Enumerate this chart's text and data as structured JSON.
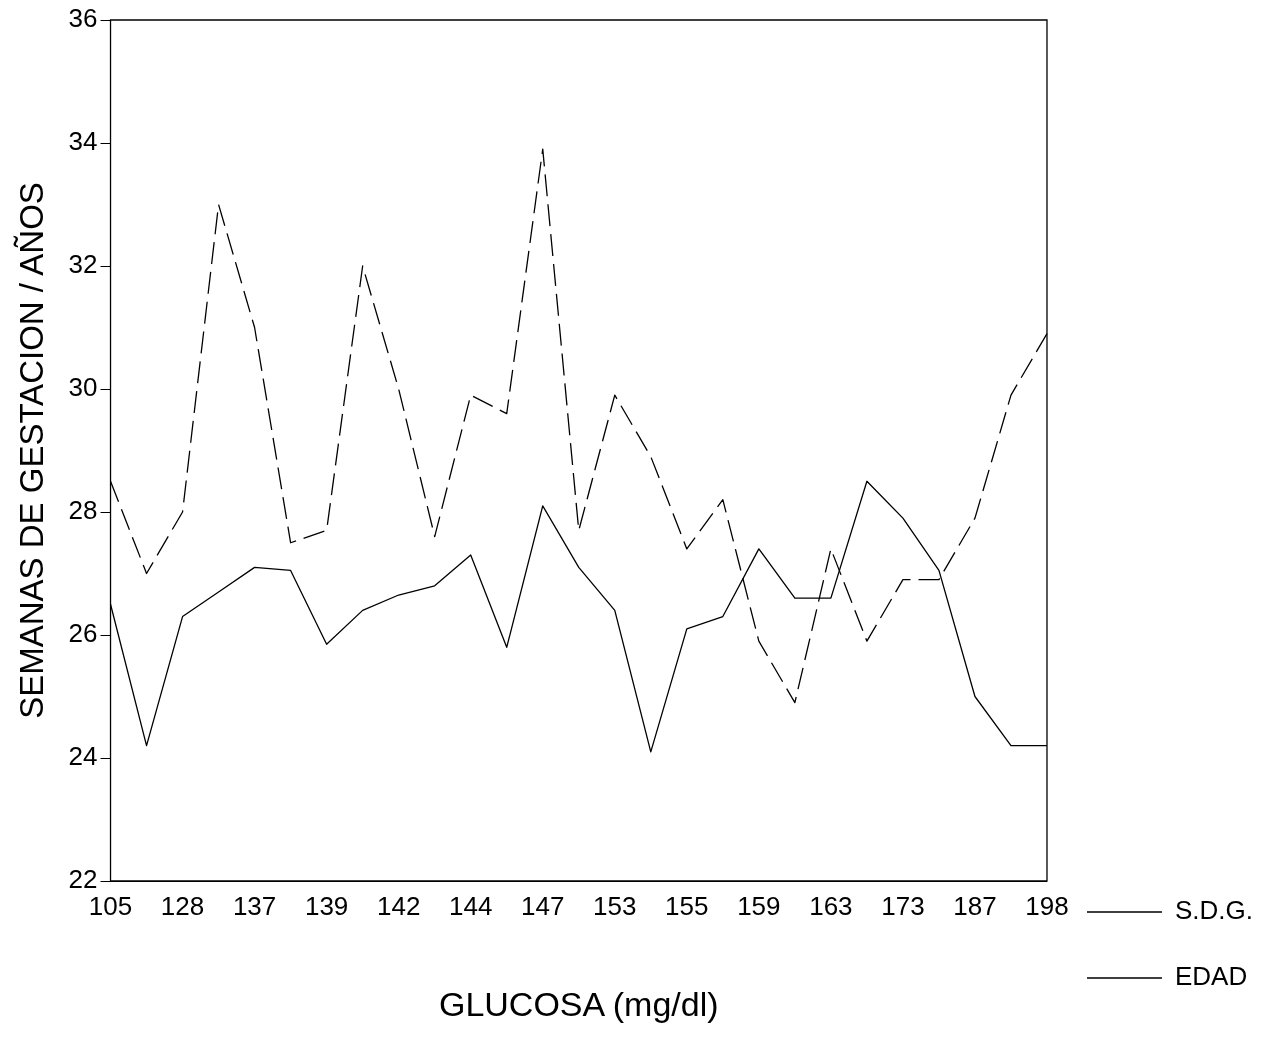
{
  "chart_data": {
    "type": "line",
    "xlabel": "GLUCOSA (mg/dl)",
    "ylabel": "SEMANAS DE GESTACION / AÑOS",
    "categories": [
      "105",
      null,
      "128",
      null,
      "137",
      null,
      "139",
      null,
      "142",
      null,
      "144",
      null,
      "147",
      null,
      "153",
      null,
      "155",
      null,
      "159",
      null,
      "163",
      null,
      "173",
      null,
      "187",
      null,
      "198"
    ],
    "series": [
      {
        "name": "S.D.G.",
        "color": "#000000",
        "line_style": "solid",
        "values": [
          26.5,
          24.2,
          26.3,
          26.7,
          27.1,
          27.05,
          25.85,
          26.4,
          26.65,
          26.8,
          27.3,
          25.8,
          28.1,
          27.1,
          26.4,
          24.1,
          26.1,
          26.3,
          27.4,
          26.6,
          26.6,
          28.5,
          27.9,
          27.05,
          25.0,
          24.2,
          24.2
        ]
      },
      {
        "name": "EDAD",
        "color": "#000000",
        "line_style": "dashed",
        "values": [
          28.5,
          27.0,
          28.0,
          33.0,
          31.0,
          27.5,
          27.7,
          32.0,
          30.0,
          27.6,
          29.9,
          29.6,
          33.9,
          27.7,
          29.9,
          28.9,
          27.4,
          28.2,
          25.9,
          24.9,
          27.4,
          25.9,
          26.9,
          26.9,
          27.9,
          29.9,
          30.9
        ]
      }
    ],
    "ylim": [
      22,
      36
    ],
    "yticks": [
      22,
      24,
      26,
      28,
      30,
      32,
      34,
      36
    ],
    "grid": false,
    "legend": "right",
    "marker": "none"
  }
}
